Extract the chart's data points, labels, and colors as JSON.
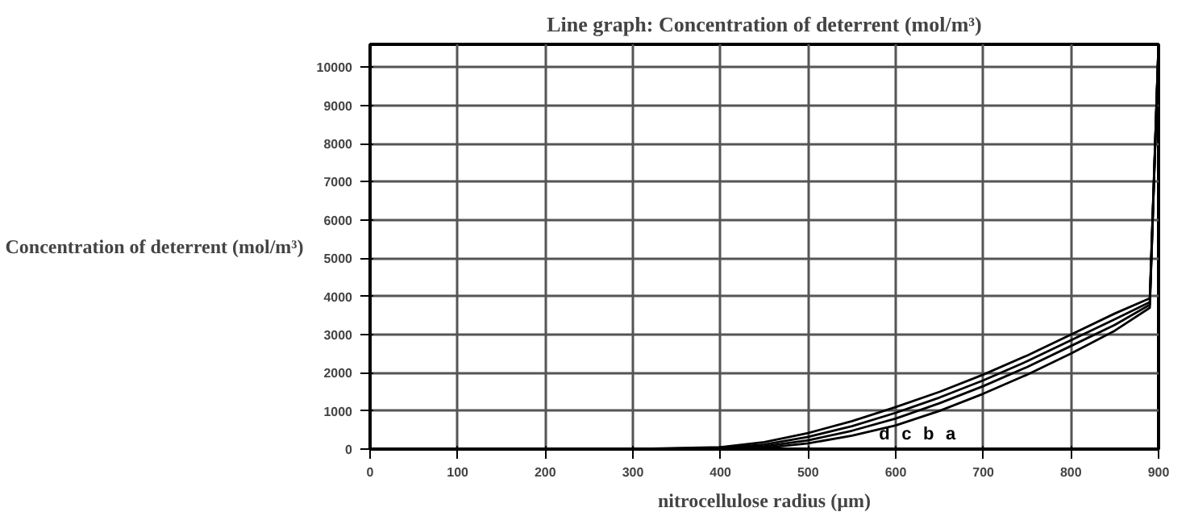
{
  "chart_data": {
    "type": "line",
    "title": "Line graph: Concentration of deterrent (mol/m³)",
    "xlabel": "nitrocellulose radius (µm)",
    "ylabel": "Concentration of deterrent (mol/m³)",
    "xlim": [
      0,
      900
    ],
    "ylim": [
      0,
      10600
    ],
    "xticks": [
      0,
      100,
      200,
      300,
      400,
      500,
      600,
      700,
      800,
      900
    ],
    "yticks": [
      0,
      1000,
      2000,
      3000,
      4000,
      5000,
      6000,
      7000,
      8000,
      9000,
      10000
    ],
    "grid": true,
    "marker": "none",
    "line_style": "solid",
    "series": [
      {
        "color": "#000000",
        "x": [
          0,
          300,
          400,
          450,
          500,
          550,
          600,
          650,
          700,
          750,
          800,
          850,
          890,
          900
        ],
        "values": [
          0,
          0,
          0,
          30,
          150,
          350,
          620,
          1000,
          1450,
          1950,
          2500,
          3100,
          3700,
          10600
        ]
      },
      {
        "color": "#000000",
        "x": [
          0,
          300,
          400,
          450,
          500,
          550,
          600,
          650,
          700,
          750,
          800,
          850,
          890,
          900
        ],
        "values": [
          0,
          0,
          10,
          70,
          230,
          480,
          800,
          1200,
          1650,
          2150,
          2700,
          3250,
          3780,
          10600
        ]
      },
      {
        "color": "#000000",
        "x": [
          0,
          300,
          400,
          450,
          500,
          550,
          600,
          650,
          700,
          750,
          800,
          850,
          890,
          900
        ],
        "values": [
          0,
          0,
          30,
          120,
          320,
          600,
          950,
          1350,
          1800,
          2300,
          2850,
          3400,
          3850,
          10600
        ]
      },
      {
        "color": "#000000",
        "x": [
          0,
          300,
          400,
          450,
          500,
          550,
          600,
          650,
          700,
          750,
          800,
          850,
          890,
          900
        ],
        "values": [
          0,
          0,
          50,
          180,
          420,
          730,
          1100,
          1500,
          1950,
          2450,
          3000,
          3550,
          3950,
          10600
        ]
      }
    ],
    "annotations": [
      "a",
      "b",
      "c",
      "d"
    ]
  }
}
